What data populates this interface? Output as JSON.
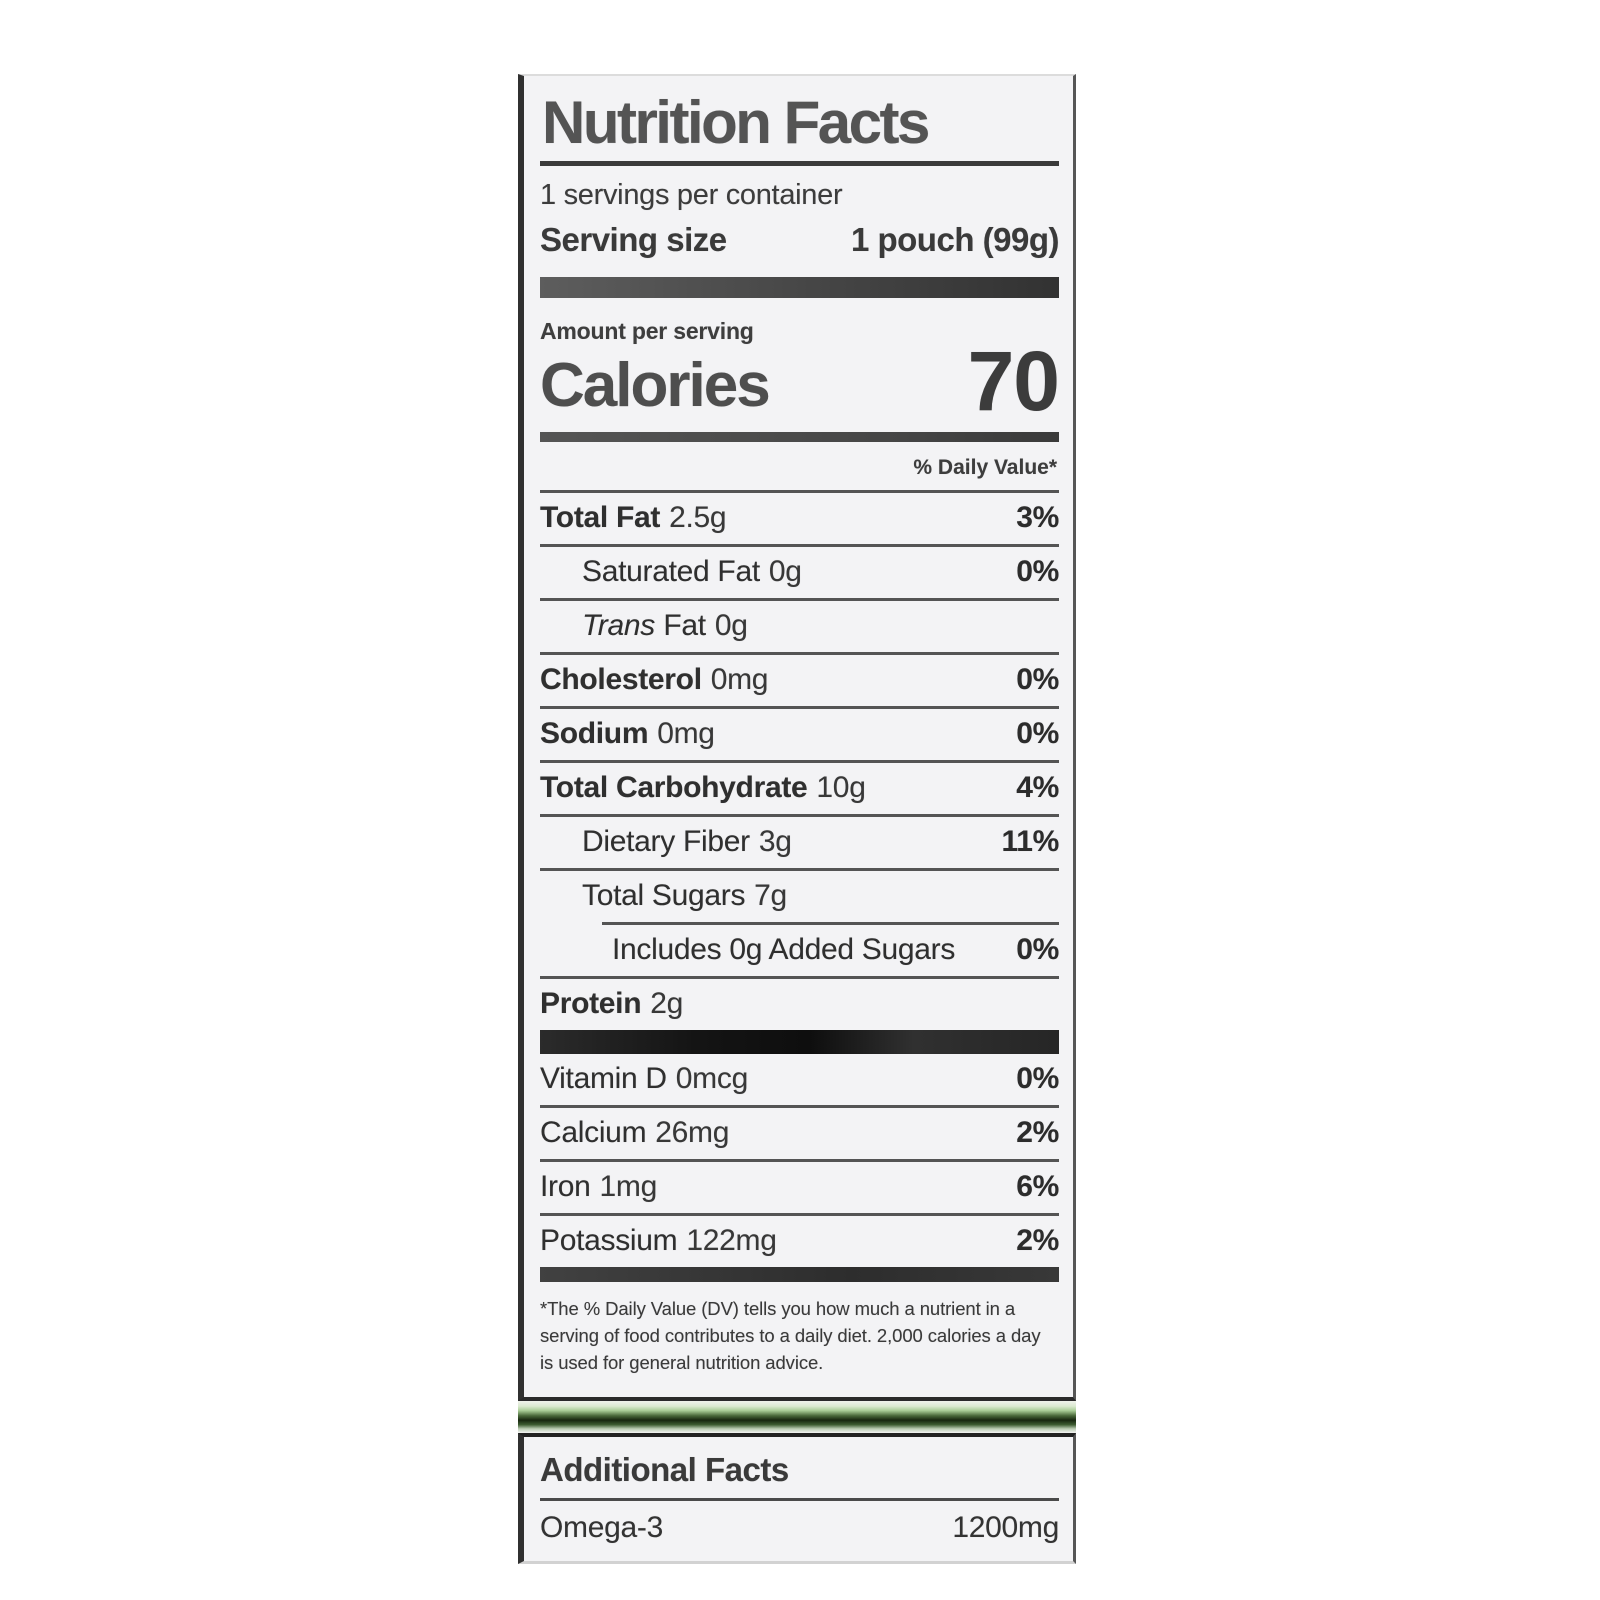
{
  "nutrition_panel": {
    "title": "Nutrition Facts",
    "servings_per_container": "1 servings per container",
    "serving_size": {
      "label": "Serving size",
      "value": "1 pouch (99g)"
    },
    "amount_per_serving": "Amount per serving",
    "calories": {
      "label": "Calories",
      "value": "70"
    },
    "daily_value_header": "% Daily Value*",
    "rows": [
      {
        "name": "Total Fat",
        "amount": "2.5g",
        "dv": "3%"
      },
      {
        "name": "Saturated Fat",
        "amount": "0g",
        "dv": "0%"
      },
      {
        "name_italic": "Trans",
        "name_rest": "Fat",
        "amount": "0g",
        "dv": ""
      },
      {
        "name": "Cholesterol",
        "amount": "0mg",
        "dv": "0%"
      },
      {
        "name": "Sodium",
        "amount": "0mg",
        "dv": "0%"
      },
      {
        "name": "Total Carbohydrate",
        "amount": "10g",
        "dv": "4%"
      },
      {
        "name": "Dietary Fiber",
        "amount": "3g",
        "dv": "11%"
      },
      {
        "name": "Total Sugars",
        "amount": "7g",
        "dv": ""
      },
      {
        "name": "Includes 0g Added Sugars",
        "amount": "",
        "dv": "0%"
      },
      {
        "name": "Protein",
        "amount": "2g",
        "dv": ""
      }
    ],
    "micronutrients": [
      {
        "name": "Vitamin D",
        "amount": "0mcg",
        "dv": "0%"
      },
      {
        "name": "Calcium",
        "amount": "26mg",
        "dv": "2%"
      },
      {
        "name": "Iron",
        "amount": "1mg",
        "dv": "6%"
      },
      {
        "name": "Potassium",
        "amount": "122mg",
        "dv": "2%"
      }
    ],
    "footnote": "*The % Daily Value (DV) tells you how much a nutrient in a serving of food contributes to a daily diet. 2,000 calories a day is used for general nutrition advice."
  },
  "additional_panel": {
    "title": "Additional Facts",
    "rows": [
      {
        "name": "Omega-3",
        "amount": "1200mg"
      }
    ]
  },
  "colors": {
    "panel_background": "#f3f3f5",
    "text_dark": "#2f2f2f",
    "title_gray": "#545454",
    "divider": "#4d4d4d",
    "black_bar": "#141414",
    "package_green_light": "#a9cd97",
    "package_green_dark": "#17260f"
  }
}
